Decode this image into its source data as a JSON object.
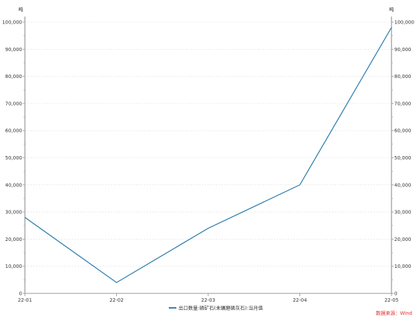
{
  "chart_data": {
    "type": "line",
    "title": "",
    "categories": [
      "22-01",
      "22-02",
      "22-03",
      "22-04",
      "22-05"
    ],
    "series": [
      {
        "name": "出口数量:磷矿石(未碾磨磷灰石):当月值",
        "values": [
          28000,
          4000,
          24000,
          40000,
          98000
        ],
        "color": "#2e7fae"
      }
    ],
    "ylim": [
      0,
      100000
    ],
    "yticks": [
      0,
      10000,
      20000,
      30000,
      40000,
      50000,
      60000,
      70000,
      80000,
      90000,
      100000
    ],
    "ytick_labels": [
      "0",
      "10,000",
      "20,000",
      "30,000",
      "40,000",
      "50,000",
      "60,000",
      "70,000",
      "80,000",
      "90,000",
      "100,000"
    ],
    "left_unit": "吨",
    "right_unit": "吨",
    "grid": true,
    "legend_position": "bottom",
    "source": "数据来源：Wind"
  }
}
